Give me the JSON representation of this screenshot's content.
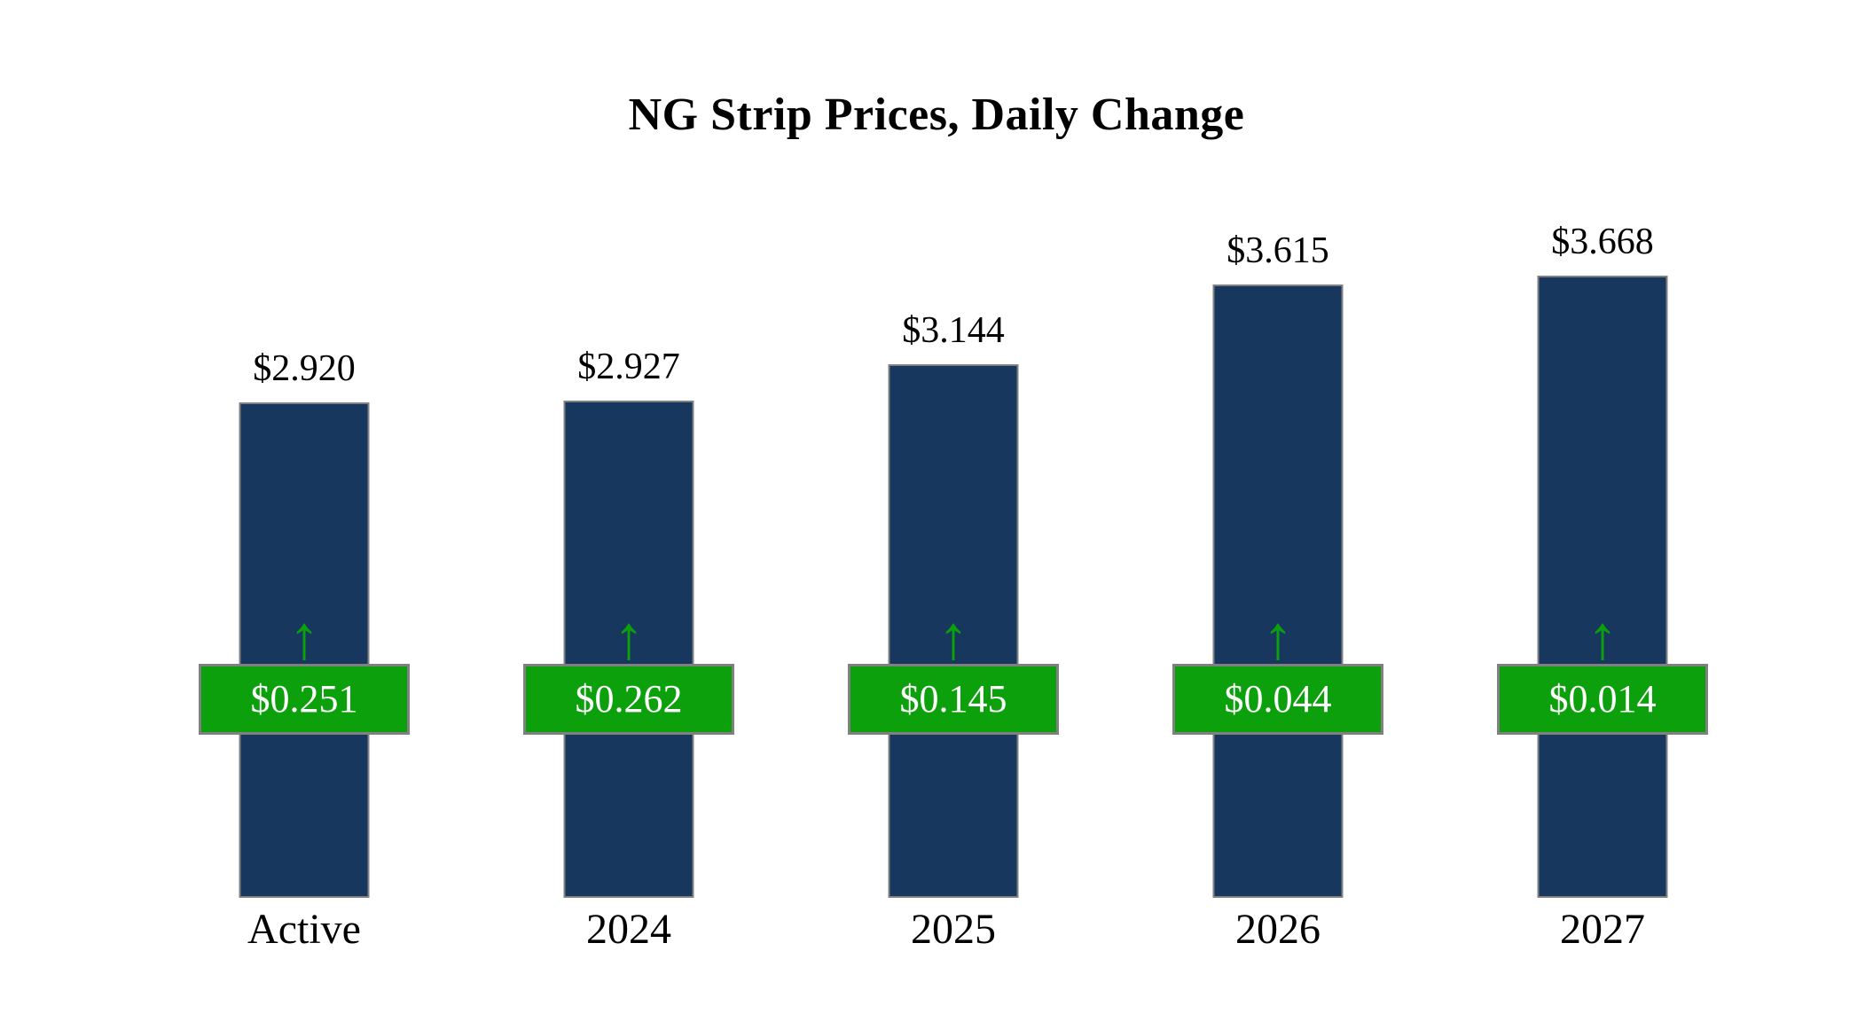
{
  "chart_data": {
    "type": "bar",
    "title": "NG Strip Prices, Daily Change",
    "categories": [
      "Active",
      "2024",
      "2025",
      "2026",
      "2027"
    ],
    "series": [
      {
        "name": "Strip Price",
        "values": [
          2.92,
          2.927,
          3.144,
          3.615,
          3.668
        ],
        "labels": [
          "$2.920",
          "$2.927",
          "$3.144",
          "$3.615",
          "$3.668"
        ]
      },
      {
        "name": "Daily Change",
        "values": [
          0.251,
          0.262,
          0.145,
          0.044,
          0.014
        ],
        "labels": [
          "$0.251",
          "$0.262",
          "$0.145",
          "$0.044",
          "$0.014"
        ],
        "direction": "up"
      }
    ],
    "ylim": [
      0,
      3.8
    ],
    "grid": false,
    "legend": "none",
    "arrow_glyph": "↑",
    "colors": {
      "bar": "#17375E",
      "badge": "#0CA00C",
      "badge_border": "#808080",
      "badge_text": "#FFFFFF",
      "arrow": "#0CA00C",
      "value_text": "#000000"
    }
  }
}
